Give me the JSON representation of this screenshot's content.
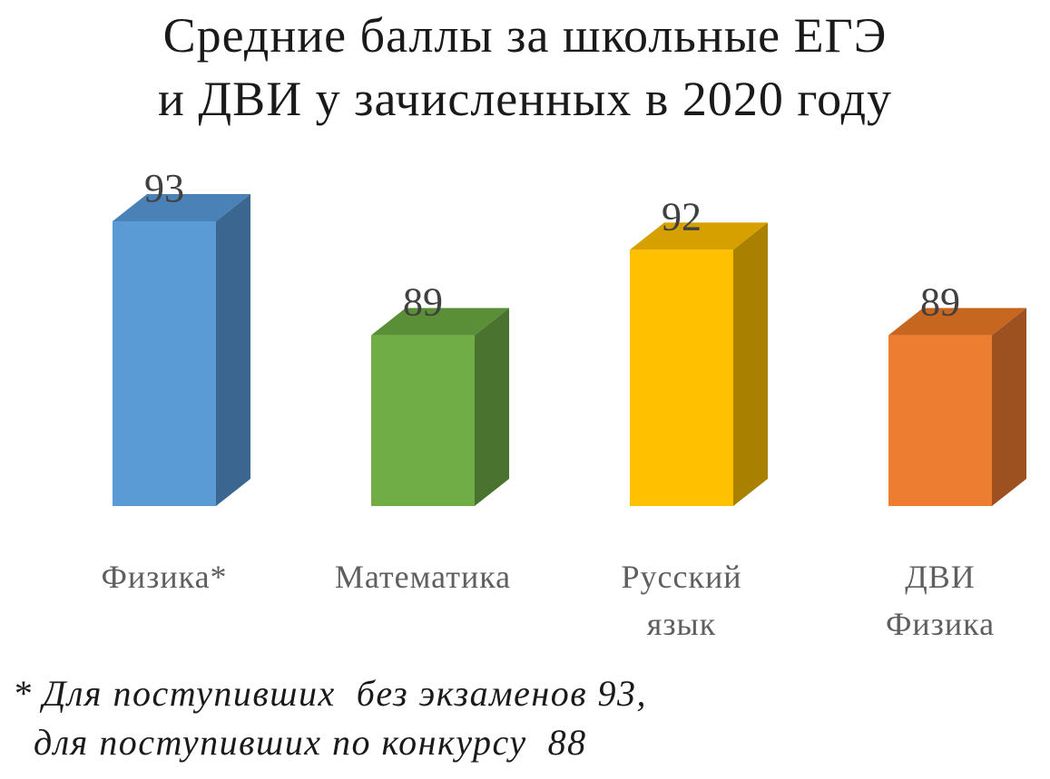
{
  "chart_data": {
    "type": "bar",
    "title_lines": [
      "Средние баллы за школьные ЕГЭ",
      "и ДВИ у зачисленных в 2020 году"
    ],
    "categories": [
      [
        "Физика*"
      ],
      [
        "Математика"
      ],
      [
        "Русский",
        "язык"
      ],
      [
        "ДВИ",
        "Физика"
      ]
    ],
    "values": [
      93,
      89,
      92,
      89
    ],
    "data_labels": [
      "93",
      "89",
      "92",
      "89"
    ],
    "colors": [
      "#5b9bd5",
      "#70ad47",
      "#ffc000",
      "#ed7d31"
    ],
    "side_colors": [
      "#3a6690",
      "#4a7330",
      "#a98000",
      "#9d5120"
    ],
    "top_colors": [
      "#4a82b8",
      "#5a8f38",
      "#d6a100",
      "#c7661f"
    ],
    "bar_style": "3d-column",
    "ylim": [
      83,
      93
    ],
    "xlabel": "",
    "ylabel": "",
    "legend": "none",
    "grid": false
  },
  "footnote": {
    "line1": "* Для поступивших  без экзаменов 93,",
    "line2": "  для поступивших по конкурсу  88"
  }
}
